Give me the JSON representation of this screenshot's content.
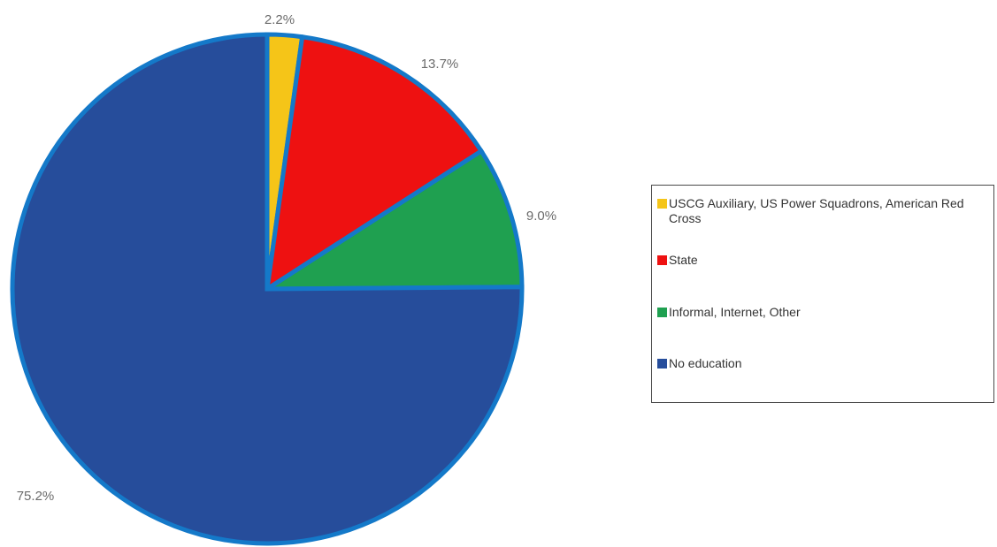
{
  "chart_data": {
    "type": "pie",
    "title": "",
    "slices": [
      {
        "label": "USCG Auxiliary, US Power Squadrons, American Red Cross",
        "value": 2.2,
        "display": "2.2%",
        "color": "#F5C518"
      },
      {
        "label": "State",
        "value": 13.7,
        "display": "13.7%",
        "color": "#EE1111"
      },
      {
        "label": "Informal, Internet, Other",
        "value": 9.0,
        "display": "9.0%",
        "color": "#1FA050"
      },
      {
        "label": "No education",
        "value": 75.2,
        "display": "75.2%",
        "color": "#264D9B"
      }
    ],
    "slice_border_color": "#1479C9",
    "start_angle": "12 o'clock",
    "direction": "clockwise",
    "legend_position": "right"
  }
}
